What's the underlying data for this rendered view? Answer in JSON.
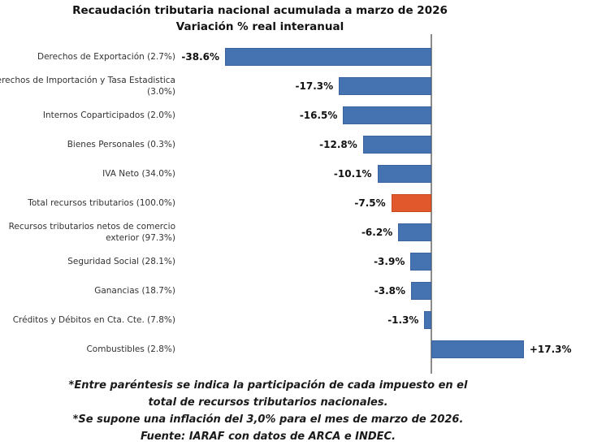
{
  "title": {
    "line1": "Recaudación tributaria nacional acumulada a marzo de 2026",
    "line2": "Variación % real interanual"
  },
  "chart_data": {
    "type": "bar",
    "orientation": "horizontal",
    "unit": "%",
    "title": "Recaudación tributaria nacional acumulada a marzo de 2026 — Variación % real interanual",
    "categories": [
      "Derechos de Exportación (2.7%)",
      "Derechos de Importación y Tasa Estadistica (3.0%)",
      "Internos Coparticipados (2.0%)",
      "Bienes Personales (0.3%)",
      "IVA Neto (34.0%)",
      "Total recursos tributarios (100.0%)",
      "Recursos tributarios netos de comercio exterior (97.3%)",
      "Seguridad Social (28.1%)",
      "Ganancias (18.7%)",
      "Créditos y Débitos en Cta. Cte. (7.8%)",
      "Combustibles (2.8%)"
    ],
    "values": [
      -38.6,
      -17.3,
      -16.5,
      -12.8,
      -10.1,
      -7.5,
      -6.2,
      -3.9,
      -3.8,
      -1.3,
      17.3
    ],
    "value_labels": [
      "-38.6%",
      "-17.3%",
      "-16.5%",
      "-12.8%",
      "-10.1%",
      "-7.5%",
      "-6.2%",
      "-3.9%",
      "-3.8%",
      "-1.3%",
      "+17.3%"
    ],
    "highlight_index": 5,
    "colors": {
      "bar": "#4572b0",
      "bar_border": "#3a63a0",
      "highlight": "#e0582b",
      "highlight_border": "#c74a1e",
      "axis": "#8c8c8c"
    },
    "xlim": [
      -45,
      25
    ],
    "grid": false,
    "legend": null
  },
  "footnotes": {
    "lines": [
      "*Entre paréntesis se indica la participación de cada impuesto en el",
      "total de recursos tributarios nacionales.",
      "*Se supone una inflación del 3,0% para el mes de marzo de 2026.",
      "Fuente: IARAF con datos de ARCA e INDEC."
    ]
  }
}
